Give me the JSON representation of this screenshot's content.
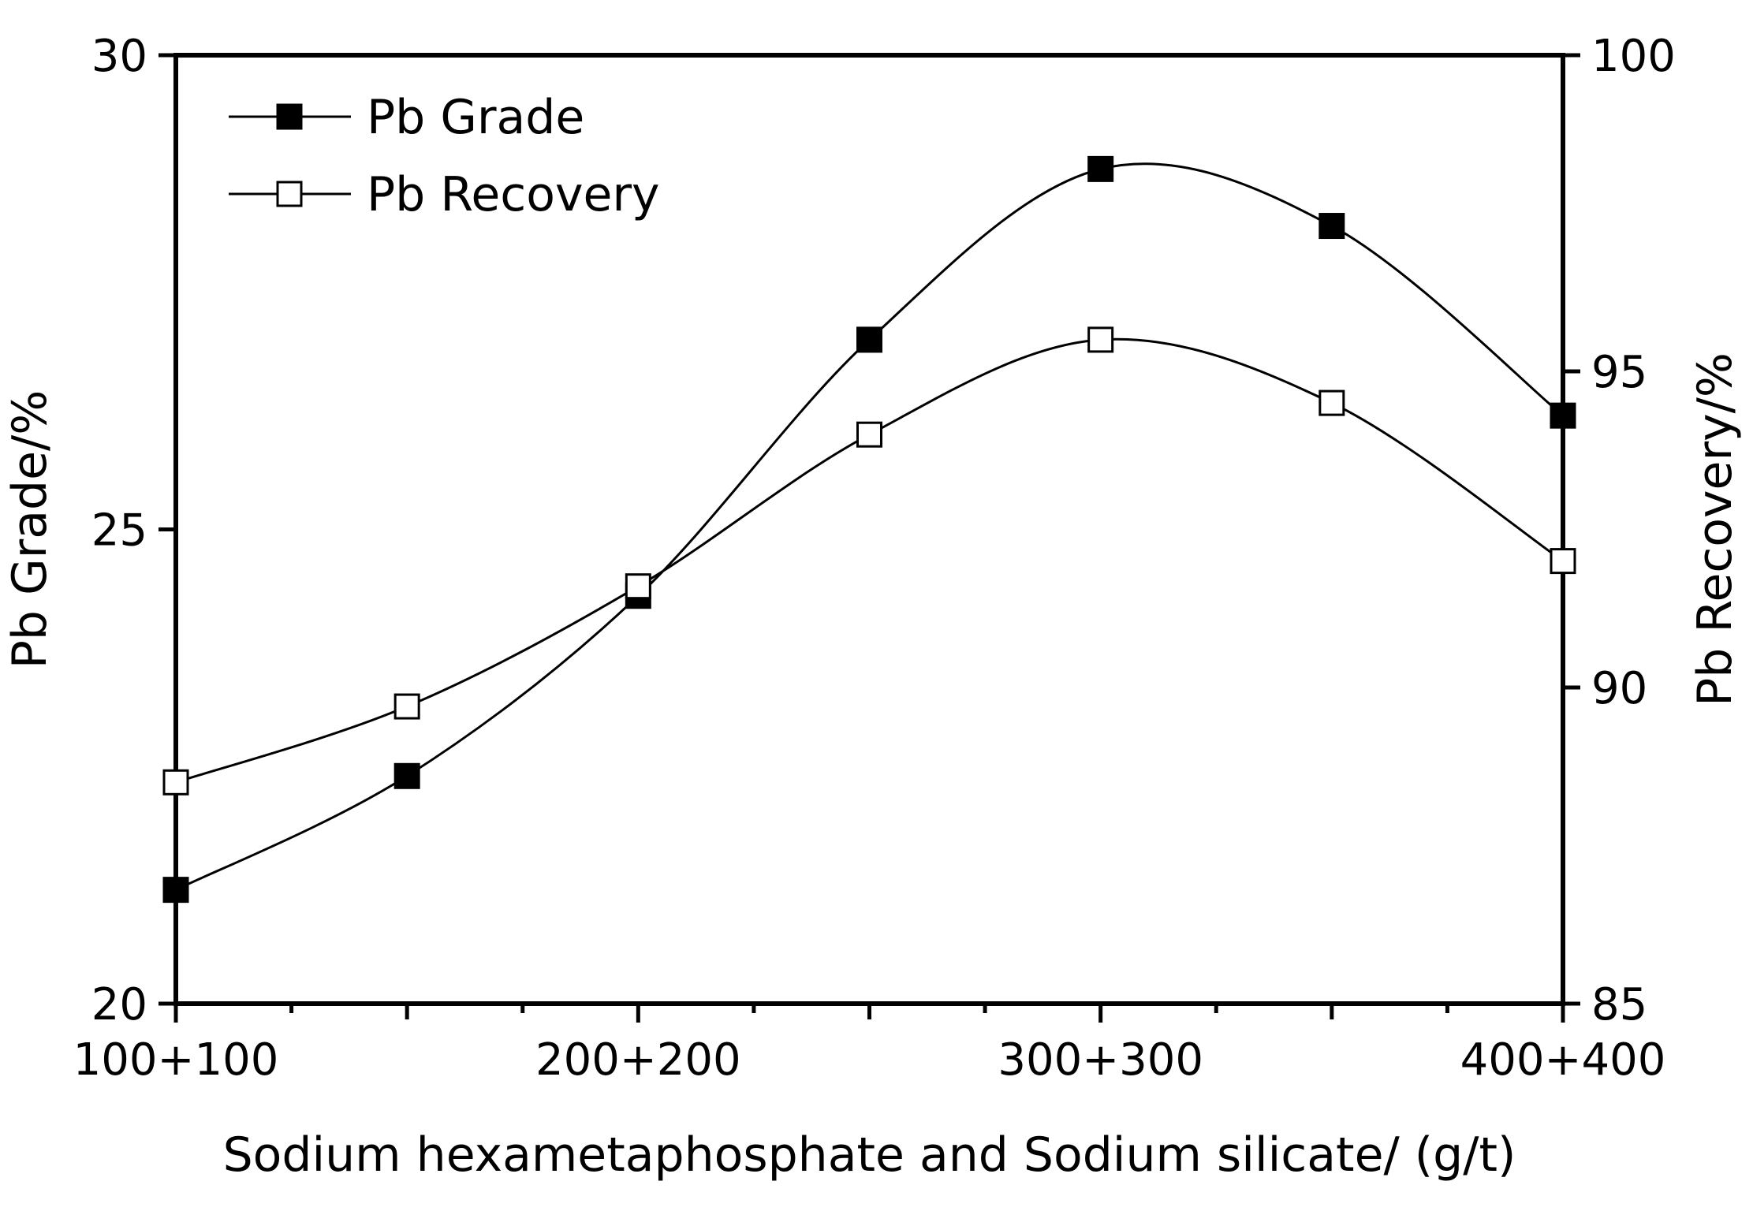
{
  "chart_data": {
    "type": "line",
    "xlabel": "Sodium hexametaphosphate and Sodium silicate/  (g/t)",
    "x_tick_labels": [
      "100+100",
      "200+200",
      "300+300",
      "400+400"
    ],
    "x_values": [
      100,
      150,
      200,
      250,
      300,
      350,
      400
    ],
    "xlim": [
      100,
      400
    ],
    "y_left": {
      "label": "Pb Grade/%",
      "lim": [
        20,
        30
      ],
      "ticks": [
        "20",
        "25",
        "30"
      ]
    },
    "y_right": {
      "label": "Pb Recovery/%",
      "lim": [
        85,
        100
      ],
      "ticks": [
        "85",
        "90",
        "95",
        "100"
      ]
    },
    "series": [
      {
        "name": "Pb Grade",
        "axis": "left",
        "marker": "filled-square",
        "values": [
          21.2,
          22.4,
          24.3,
          27.0,
          28.8,
          28.2,
          26.2
        ]
      },
      {
        "name": "Pb Recovery",
        "axis": "right",
        "marker": "open-square",
        "values": [
          88.5,
          89.7,
          91.6,
          94.0,
          95.5,
          94.5,
          92.0
        ]
      }
    ],
    "legend": "top-left",
    "grid": false
  }
}
